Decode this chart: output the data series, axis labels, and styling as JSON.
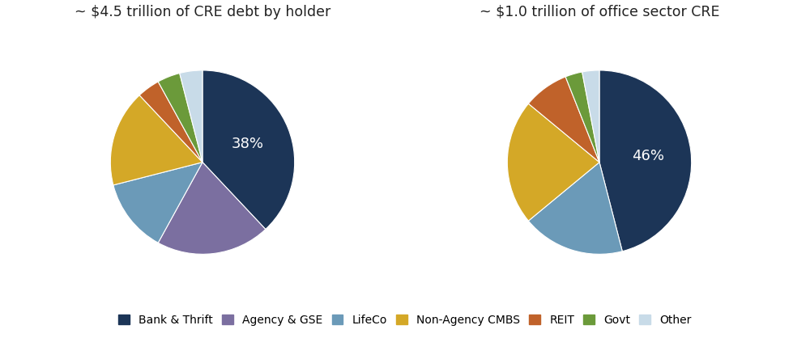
{
  "chart1_title": "~ $4.5 trillion of CRE debt by holder",
  "chart2_title": "~ $1.0 trillion of office sector CRE",
  "categories": [
    "Bank & Thrift",
    "Agency & GSE",
    "LifeCo",
    "Non-Agency CMBS",
    "REIT",
    "Govt",
    "Other"
  ],
  "colors": [
    "#1c3557",
    "#7b6fa0",
    "#6b9ab8",
    "#d4a827",
    "#c0622a",
    "#6b9a3a",
    "#c8dbe8"
  ],
  "chart1_sizes": [
    38,
    20,
    13,
    17,
    4,
    4,
    4
  ],
  "chart2_sizes": [
    46,
    18,
    22,
    8,
    3,
    3
  ],
  "chart2_colors": [
    "#1c3557",
    "#6b9ab8",
    "#d4a827",
    "#c0622a",
    "#6b9a3a",
    "#c8dbe8"
  ],
  "chart1_label": "38%",
  "chart2_label": "46%",
  "background_color": "#ffffff",
  "text_color": "#222222",
  "label_fontsize": 13,
  "title_fontsize": 12.5,
  "legend_fontsize": 10
}
